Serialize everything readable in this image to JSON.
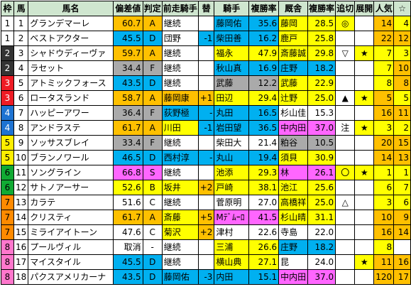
{
  "headers": [
    "枠",
    "馬",
    "馬名",
    "偏差値",
    "判定",
    "前走騎手",
    "替",
    "騎手",
    "複勝率",
    "厩舎",
    "複勝率",
    "追切",
    "展開",
    "人気",
    "☆"
  ],
  "header_colors": {
    "default": "#cfe6cf"
  },
  "frame_colors": {
    "1": "#ffffff",
    "2": "#333333",
    "3": "#ee1c25",
    "4": "#1e73d2",
    "5": "#ffee00",
    "6": "#11aa33",
    "7": "#ff8a00",
    "8": "#ff77cc"
  },
  "rows": [
    {
      "frame": "1",
      "num": "1",
      "name": "グランデマーレ",
      "dev": "60.7",
      "judge": "A",
      "prev": "継続",
      "change": "",
      "jockey": "藤岡佑",
      "jrate": "35.6",
      "trainer": "藤岡",
      "trate": "28.5",
      "oikiri": "◎",
      "tenkai": "",
      "pop": "14",
      "star": "4",
      "bg": {
        "dev": "#ffc000",
        "judge": "#ffc000",
        "jockey": "#00b0f0",
        "jrate": "#00b0f0",
        "trainer": "#ffff00",
        "trate": "#ffff00",
        "oikiri": "#ffff00",
        "pop": "#ffc000",
        "star": "#ffff00"
      }
    },
    {
      "frame": "1",
      "num": "2",
      "name": "ベストアクター",
      "dev": "45.5",
      "judge": "D",
      "prev": "団野",
      "change": "-1",
      "jockey": "柴田善",
      "jrate": "16.2",
      "trainer": "鹿戸",
      "trate": "25.8",
      "oikiri": "",
      "tenkai": "",
      "pop": "22",
      "star": "12",
      "bg": {
        "dev": "#00b0f0",
        "judge": "#00b0f0",
        "change": "#00b0f0",
        "jockey": "#00b0f0",
        "jrate": "#00b0f0",
        "trainer": "#ffff00",
        "trate": "#ffff00",
        "pop": "#ffc000",
        "star": "#ffc000"
      }
    },
    {
      "frame": "2",
      "num": "3",
      "name": "シャドウディーヴァ",
      "dev": "59.7",
      "judge": "A",
      "prev": "継続",
      "change": "",
      "jockey": "福永",
      "jrate": "47.9",
      "trainer": "斎藤誠",
      "trate": "29.8",
      "oikiri": "▽",
      "tenkai": "★",
      "pop": "7",
      "star": "3",
      "bg": {
        "dev": "#ffc000",
        "judge": "#ffc000",
        "jockey": "#ffff00",
        "jrate": "#ffff00",
        "trainer": "#ffff00",
        "trate": "#ffff00",
        "tenkai": "#ffff00",
        "pop": "#ffff00",
        "star": "#ffff00"
      }
    },
    {
      "frame": "2",
      "num": "4",
      "name": "ラセット",
      "dev": "34.4",
      "judge": "F",
      "prev": "継続",
      "change": "",
      "jockey": "秋山真",
      "jrate": "16.9",
      "trainer": "庄野",
      "trate": "18.2",
      "oikiri": "",
      "tenkai": "",
      "pop": "7",
      "star": "10",
      "bg": {
        "dev": "#aaaaaa",
        "judge": "#aaaaaa",
        "jockey": "#00b0f0",
        "jrate": "#00b0f0",
        "trainer": "#00b0f0",
        "trate": "#00b0f0",
        "pop": "#ffff00",
        "star": "#ffc000"
      }
    },
    {
      "frame": "3",
      "num": "5",
      "name": "アトミックフォース",
      "dev": "43.5",
      "judge": "D",
      "prev": "継続",
      "change": "",
      "jockey": "武藤",
      "jrate": "12.2",
      "trainer": "武藤",
      "trate": "22.9",
      "oikiri": "",
      "tenkai": "",
      "pop": "8",
      "star": "8",
      "bg": {
        "dev": "#00b0f0",
        "judge": "#00b0f0",
        "jockey": "#aaaaaa",
        "jrate": "#aaaaaa",
        "trainer": "#ffff00",
        "trate": "#ffff00",
        "pop": "#ffff00",
        "star": "#ffc000"
      }
    },
    {
      "frame": "3",
      "num": "6",
      "name": "ロータスランド",
      "dev": "58.7",
      "judge": "A",
      "prev": "藤岡康",
      "change": "+1",
      "jockey": "田辺",
      "jrate": "29.4",
      "trainer": "辻野",
      "trate": "25.0",
      "oikiri": "▲",
      "tenkai": "★",
      "pop": "5",
      "star": "5",
      "bg": {
        "dev": "#ffc000",
        "judge": "#ffc000",
        "prev": "#ffc000",
        "change": "#ffc000",
        "jockey": "#ffff00",
        "jrate": "#ffff00",
        "trainer": "#ffff00",
        "trate": "#ffff00",
        "tenkai": "#ffff00",
        "pop": "#ffc000",
        "star": "#ffff00"
      }
    },
    {
      "frame": "4",
      "num": "7",
      "name": "ハッピーアワー",
      "dev": "36.4",
      "judge": "F",
      "prev": "荻野極",
      "change": "-",
      "jockey": "丸田",
      "jrate": "16.5",
      "trainer": "杉山佳",
      "trate": "15.3",
      "oikiri": "",
      "tenkai": "",
      "pop": "16",
      "star": "11",
      "bg": {
        "dev": "#aaaaaa",
        "judge": "#aaaaaa",
        "prev": "#00b0f0",
        "change": "#00b0f0",
        "jockey": "#00b0f0",
        "jrate": "#00b0f0",
        "pop": "#ffc000",
        "star": "#ffc000"
      }
    },
    {
      "frame": "4",
      "num": "8",
      "name": "アンドラステ",
      "dev": "61.7",
      "judge": "A",
      "prev": "川田",
      "change": "-1",
      "jockey": "岩田望",
      "jrate": "36.5",
      "trainer": "中内田",
      "trate": "37.0",
      "oikiri": "注",
      "tenkai": "★",
      "pop": "3",
      "star": "2",
      "bg": {
        "dev": "#ffc000",
        "judge": "#ffc000",
        "prev": "#ffff00",
        "change": "#00b0f0",
        "jockey": "#00b0f0",
        "jrate": "#00b0f0",
        "trainer": "#ff66ff",
        "trate": "#ff66ff",
        "tenkai": "#ffff00",
        "pop": "#ffff00",
        "star": "#ffff00"
      }
    },
    {
      "frame": "5",
      "num": "9",
      "name": "ソッサスブレイ",
      "dev": "33.4",
      "judge": "F",
      "prev": "継続",
      "change": "",
      "jockey": "柴田大",
      "jrate": "21.4",
      "trainer": "粕谷",
      "trate": "10.5",
      "oikiri": "",
      "tenkai": "",
      "pop": "20",
      "star": "15",
      "bg": {
        "dev": "#aaaaaa",
        "judge": "#aaaaaa",
        "trainer": "#aaaaaa",
        "trate": "#aaaaaa",
        "pop": "#ffc000",
        "star": "#ffc000"
      }
    },
    {
      "frame": "5",
      "num": "10",
      "name": "ブランノワール",
      "dev": "46.5",
      "judge": "D",
      "prev": "西村淳",
      "change": "-",
      "jockey": "丸山",
      "jrate": "19.4",
      "trainer": "須貝",
      "trate": "30.9",
      "oikiri": "",
      "tenkai": "",
      "pop": "14",
      "star": "13",
      "bg": {
        "dev": "#00b0f0",
        "judge": "#00b0f0",
        "prev": "#00b0f0",
        "change": "#00b0f0",
        "jockey": "#00b0f0",
        "jrate": "#00b0f0",
        "trainer": "#ffff00",
        "trate": "#ffff00",
        "pop": "#ffc000",
        "star": "#ffc000"
      }
    },
    {
      "frame": "6",
      "num": "11",
      "name": "ソングライン",
      "dev": "66.8",
      "judge": "S",
      "prev": "継続",
      "change": "",
      "jockey": "池添",
      "jrate": "29.3",
      "trainer": "林",
      "trate": "26.1",
      "oikiri": "〇",
      "tenkai": "★",
      "pop": "1",
      "star": "1",
      "bg": {
        "dev": "#ff66ff",
        "judge": "#ff66ff",
        "jockey": "#ffff00",
        "jrate": "#ffff00",
        "trainer": "#ff66ff",
        "trate": "#ff66ff",
        "oikiri": "#ffff00",
        "tenkai": "#ffff00",
        "pop": "#ffff00",
        "star": "#ffff00"
      }
    },
    {
      "frame": "6",
      "num": "12",
      "name": "サトノアーサー",
      "dev": "52.6",
      "judge": "B",
      "prev": "坂井",
      "change": "+2",
      "jockey": "戸崎",
      "jrate": "38.1",
      "trainer": "池江",
      "trate": "25.6",
      "oikiri": "",
      "tenkai": "",
      "pop": "6",
      "star": "7",
      "bg": {
        "dev": "#ffff00",
        "judge": "#ffff00",
        "prev": "#ffff00",
        "change": "#ffc000",
        "jockey": "#ffff00",
        "jrate": "#ffff00",
        "trainer": "#ffff00",
        "trate": "#ffff00",
        "pop": "#ffff00",
        "star": "#ffff00"
      }
    },
    {
      "frame": "7",
      "num": "13",
      "name": "カラテ",
      "dev": "51.6",
      "judge": "C",
      "prev": "継続",
      "change": "",
      "jockey": "菅原明",
      "jrate": "27.0",
      "trainer": "高橋祥",
      "trate": "25.0",
      "oikiri": "△",
      "tenkai": "",
      "pop": "3",
      "star": "6",
      "bg": {
        "trainer": "#ffff00",
        "trate": "#ffff00",
        "pop": "#ffff00",
        "star": "#ffff00"
      }
    },
    {
      "frame": "7",
      "num": "14",
      "name": "クリスティ",
      "dev": "61.7",
      "judge": "A",
      "prev": "斎藤",
      "change": "+5",
      "jockey": "Mﾃﾞﾑｰﾛ",
      "jrate": "41.5",
      "trainer": "杉山晴",
      "trate": "31.1",
      "oikiri": "",
      "tenkai": "",
      "pop": "10",
      "star": "9",
      "bg": {
        "dev": "#ffc000",
        "judge": "#ffc000",
        "prev": "#ffff00",
        "change": "#ffc000",
        "jockey": "#ff66ff",
        "jrate": "#ff66ff",
        "trainer": "#ffff00",
        "trate": "#ffff00",
        "pop": "#ffc000",
        "star": "#ffc000"
      }
    },
    {
      "frame": "7",
      "num": "15",
      "name": "ミライアイトーン",
      "dev": "47.6",
      "judge": "C",
      "prev": "菊沢",
      "change": "+2",
      "jockey": "津村",
      "jrate": "22.6",
      "trainer": "寺島",
      "trate": "22.0",
      "oikiri": "",
      "tenkai": "",
      "pop": "16",
      "star": "14",
      "bg": {
        "prev": "#ffff00",
        "change": "#ffc000",
        "pop": "#ffc000",
        "star": "#ffc000"
      }
    },
    {
      "frame": "8",
      "num": "16",
      "name": "プールヴィル",
      "dev": "取消",
      "judge": "-",
      "prev": "継続",
      "change": "",
      "jockey": "三浦",
      "jrate": "26.6",
      "trainer": "庄野",
      "trate": "18.2",
      "oikiri": "",
      "tenkai": "",
      "pop": "8",
      "star": "",
      "bg": {
        "jockey": "#ffff00",
        "jrate": "#ffff00",
        "trainer": "#00b0f0",
        "trate": "#00b0f0",
        "pop": "#ffff00"
      }
    },
    {
      "frame": "8",
      "num": "17",
      "name": "マイスタイル",
      "dev": "45.5",
      "judge": "D",
      "prev": "継続",
      "change": "",
      "jockey": "横山典",
      "jrate": "27.1",
      "trainer": "昆",
      "trate": "24.0",
      "oikiri": "",
      "tenkai": "★",
      "pop": "11",
      "star": "16",
      "bg": {
        "dev": "#00b0f0",
        "judge": "#00b0f0",
        "jockey": "#ffff00",
        "jrate": "#ffff00",
        "tenkai": "#ffff00",
        "pop": "#ffc000",
        "star": "#ffc000"
      }
    },
    {
      "frame": "8",
      "num": "18",
      "name": "パクスアメリカーナ",
      "dev": "43.5",
      "judge": "D",
      "prev": "藤岡佑",
      "change": "-3",
      "jockey": "内田",
      "jrate": "15.1",
      "trainer": "中内田",
      "trate": "37.0",
      "oikiri": "",
      "tenkai": "",
      "pop": "120",
      "star": "17",
      "bg": {
        "dev": "#00b0f0",
        "judge": "#00b0f0",
        "prev": "#00b0f0",
        "change": "#00b0f0",
        "jockey": "#00b0f0",
        "jrate": "#00b0f0",
        "trainer": "#ff66ff",
        "trate": "#ff66ff",
        "pop": "#ffc000",
        "star": "#ffc000"
      }
    }
  ]
}
